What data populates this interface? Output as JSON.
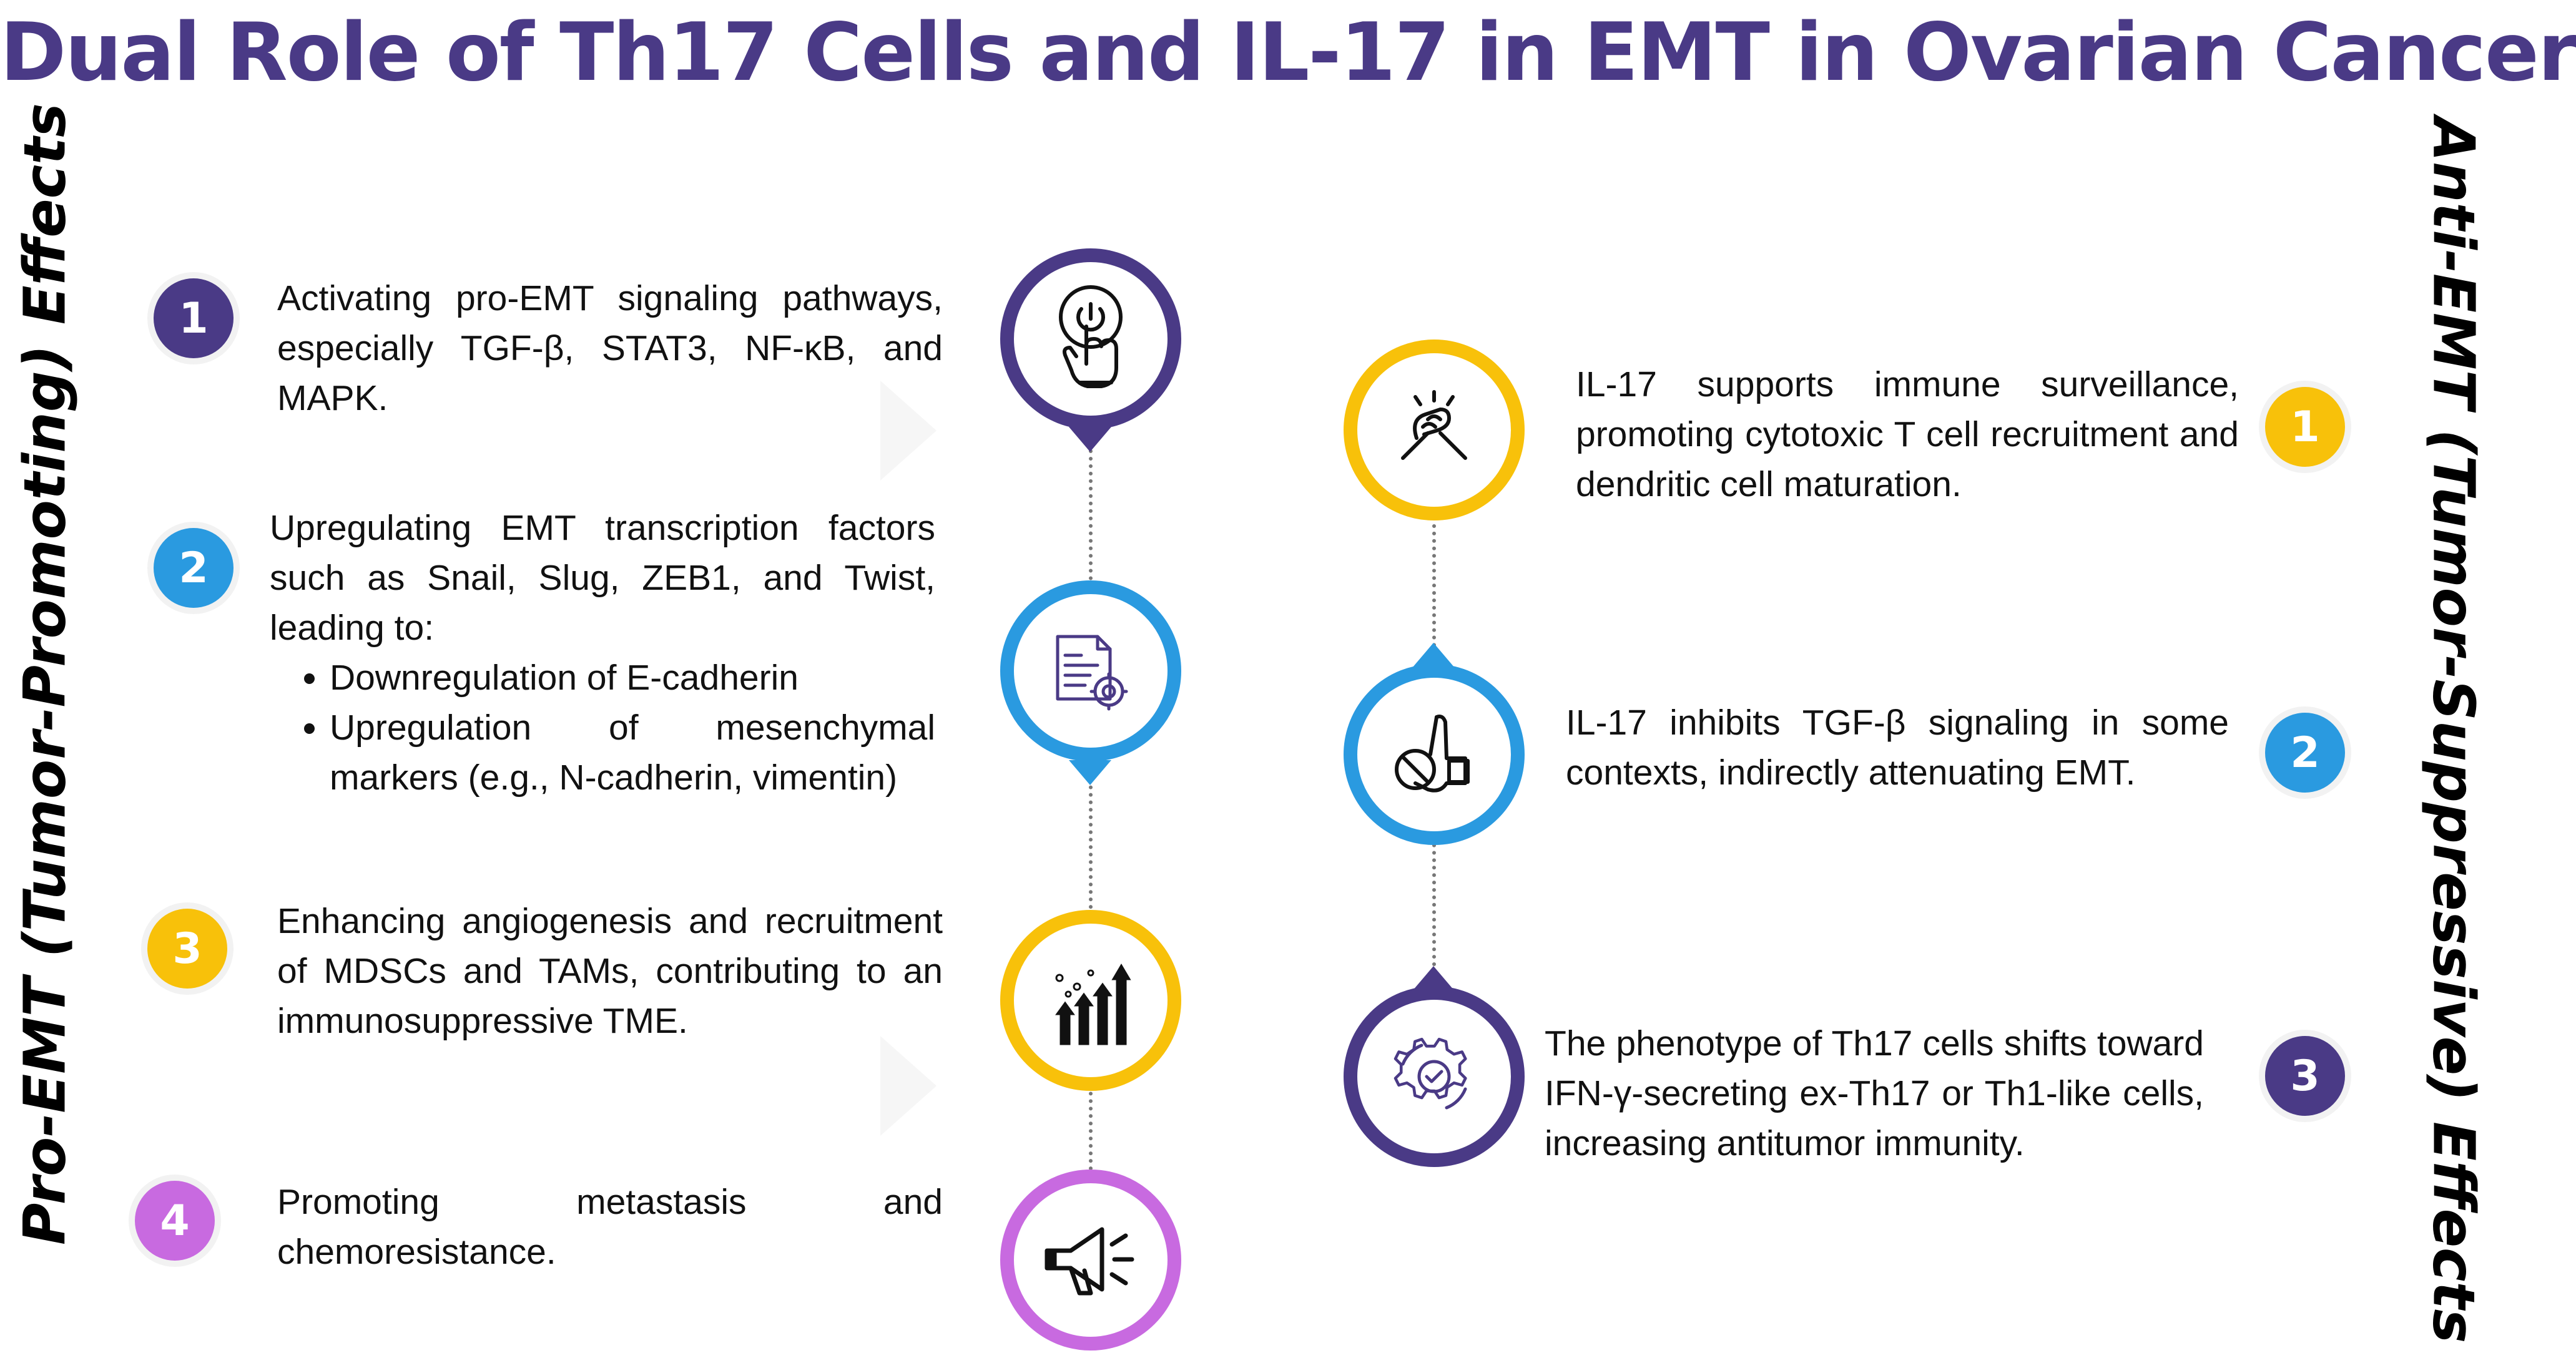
{
  "title": "Dual Role of Th17 Cells and IL-17 in EMT in Ovarian Cancer",
  "left_label": "Pro-EMT (Tumor-Promoting) Effects",
  "right_label": "Anti-EMT (Tumor-Suppressive) Effects",
  "colors": {
    "title": "#4a3a86",
    "purple": "#4a3a86",
    "blue": "#2a9ae0",
    "yellow": "#f8c10a",
    "violet": "#c86ae0"
  },
  "pro": [
    {
      "num": "1",
      "text": "Activating pro-EMT signaling pathways, especially TGF-β, STAT3, NF-κB, and MAPK.",
      "icon": "power-button-touch-icon"
    },
    {
      "num": "2",
      "text": "Upregulating EMT transcription factors such as Snail, Slug, ZEB1, and Twist, leading to:",
      "bullets": [
        "Downregulation of E-cadherin",
        "Upregulation of mesenchymal markers (e.g., N-cadherin, vimentin)"
      ],
      "icon": "document-settings-icon"
    },
    {
      "num": "3",
      "text": "Enhancing angiogenesis and recruitment of MDSCs and TAMs, contributing to an immunosuppressive TME.",
      "icon": "growth-arrows-icon"
    },
    {
      "num": "4",
      "text": "Promoting metastasis and chemoresistance.",
      "icon": "megaphone-icon"
    }
  ],
  "anti": [
    {
      "num": "1",
      "text": "IL-17 supports immune surveillance, promoting cytotoxic T cell recruitment and dendritic cell maturation.",
      "icon": "handshake-icon"
    },
    {
      "num": "2",
      "text": "IL-17 inhibits TGF-β signaling in some contexts, indirectly attenuating EMT.",
      "icon": "stop-hand-icon"
    },
    {
      "num": "3",
      "text": "The phenotype of Th17 cells shifts toward IFN-γ-secreting ex-Th17 or Th1-like cells, increasing antitumor immunity.",
      "icon": "gear-check-icon"
    }
  ]
}
